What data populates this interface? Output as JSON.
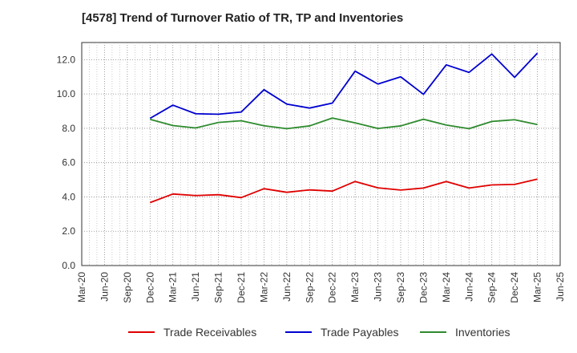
{
  "chart_data": {
    "type": "line",
    "title": "[4578]  Trend of Turnover Ratio of TR, TP and Inventories",
    "xlabel": "",
    "ylabel": "",
    "ylim": [
      0,
      13
    ],
    "yticks": [
      "0.0",
      "2.0",
      "4.0",
      "6.0",
      "8.0",
      "10.0",
      "12.0"
    ],
    "ytick_values": [
      0,
      2,
      4,
      6,
      8,
      10,
      12
    ],
    "x_ticks": [
      "Mar-20",
      "Jun-20",
      "Sep-20",
      "Dec-20",
      "Mar-21",
      "Jun-21",
      "Sep-21",
      "Dec-21",
      "Mar-22",
      "Jun-22",
      "Sep-22",
      "Dec-22",
      "Mar-23",
      "Jun-23",
      "Sep-23",
      "Dec-23",
      "Mar-24",
      "Jun-24",
      "Sep-24",
      "Dec-24",
      "Mar-25",
      "Jun-25"
    ],
    "grid": true,
    "legend_position": "bottom",
    "series": [
      {
        "name": "Trade Receivables",
        "color": "#e00000",
        "x": [
          "Dec-20",
          "Mar-21",
          "Jun-21",
          "Sep-21",
          "Dec-21",
          "Mar-22",
          "Jun-22",
          "Sep-22",
          "Dec-22",
          "Mar-23",
          "Jun-23",
          "Sep-23",
          "Dec-23",
          "Mar-24",
          "Jun-24",
          "Sep-24",
          "Dec-24",
          "Mar-25"
        ],
        "values": [
          3.67,
          4.17,
          4.08,
          4.13,
          3.96,
          4.48,
          4.27,
          4.41,
          4.34,
          4.9,
          4.53,
          4.4,
          4.52,
          4.9,
          4.52,
          4.7,
          4.73,
          5.04
        ]
      },
      {
        "name": "Trade Payables",
        "color": "#0000d0",
        "x": [
          "Dec-20",
          "Mar-21",
          "Jun-21",
          "Sep-21",
          "Dec-21",
          "Mar-22",
          "Jun-22",
          "Sep-22",
          "Dec-22",
          "Mar-23",
          "Jun-23",
          "Sep-23",
          "Dec-23",
          "Mar-24",
          "Jun-24",
          "Sep-24",
          "Dec-24",
          "Mar-25"
        ],
        "values": [
          8.58,
          9.35,
          8.85,
          8.82,
          8.95,
          10.25,
          9.41,
          9.18,
          9.47,
          11.33,
          10.58,
          11.0,
          9.98,
          11.7,
          11.26,
          12.33,
          10.97,
          12.38
        ]
      },
      {
        "name": "Inventories",
        "color": "#2e8b2e",
        "x": [
          "Dec-20",
          "Mar-21",
          "Jun-21",
          "Sep-21",
          "Dec-21",
          "Mar-22",
          "Jun-22",
          "Sep-22",
          "Dec-22",
          "Mar-23",
          "Jun-23",
          "Sep-23",
          "Dec-23",
          "Mar-24",
          "Jun-24",
          "Sep-24",
          "Dec-24",
          "Mar-25"
        ],
        "values": [
          8.52,
          8.16,
          8.02,
          8.34,
          8.44,
          8.15,
          7.98,
          8.14,
          8.6,
          8.32,
          7.99,
          8.14,
          8.53,
          8.19,
          7.98,
          8.4,
          8.5,
          8.22
        ]
      }
    ]
  }
}
